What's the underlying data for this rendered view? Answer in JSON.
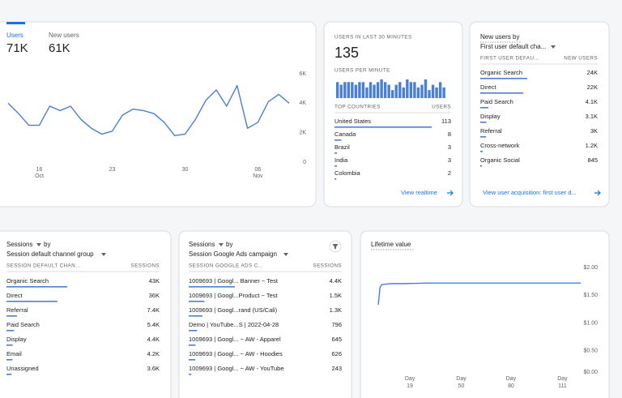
{
  "chart_data": [
    {
      "type": "line",
      "tabs": [
        {
          "label": "Users",
          "value": "71K"
        },
        {
          "label": "New users",
          "value": "61K"
        }
      ],
      "categories": [
        null,
        null,
        null,
        "16",
        null,
        null,
        null,
        null,
        null,
        null,
        "23",
        null,
        null,
        null,
        null,
        null,
        null,
        "30",
        null,
        null,
        null,
        null,
        null,
        null,
        "06",
        null,
        null,
        null
      ],
      "category_months": [
        null,
        null,
        null,
        "Oct",
        null,
        null,
        null,
        null,
        null,
        null,
        null,
        null,
        null,
        null,
        null,
        null,
        null,
        null,
        null,
        null,
        null,
        null,
        null,
        null,
        "Nov",
        null,
        null,
        null
      ],
      "values": [
        4000,
        3300,
        2500,
        2500,
        3800,
        3500,
        3800,
        2900,
        2300,
        1900,
        2100,
        3200,
        3600,
        3500,
        3300,
        2700,
        1800,
        1900,
        2900,
        4200,
        4900,
        3800,
        5200,
        2300,
        2700,
        4100,
        4600,
        4000
      ],
      "color": "#4a7fd8",
      "ylim": [
        0,
        6000
      ],
      "yticks": [
        0,
        {
          "value": 2000,
          "label": "2K"
        },
        {
          "value": 4000,
          "label": "4K"
        },
        {
          "value": 6000,
          "label": "6K"
        }
      ],
      "y_axis": "right"
    },
    {
      "type": "bar",
      "title": "USERS IN LAST 30 MINUTES",
      "headline": "135",
      "subtitle": "USERS PER MINUTE",
      "values": [
        6,
        5,
        6,
        6,
        6,
        5,
        6,
        6,
        4,
        6,
        5,
        6,
        7,
        6,
        5,
        3,
        5,
        6,
        4,
        7,
        6,
        6,
        4,
        5,
        7,
        3,
        5,
        4,
        6,
        4
      ],
      "color": "#4a7fd8"
    },
    {
      "type": "line",
      "title": "Lifetime value",
      "x": [
        0,
        1,
        2,
        4,
        8,
        15,
        30,
        60,
        90,
        122
      ],
      "values": [
        1.33,
        1.64,
        1.69,
        1.7,
        1.71,
        1.71,
        1.72,
        1.72,
        1.72,
        1.72
      ],
      "color": "#4a7fd8",
      "xlim": [
        -3,
        122
      ],
      "xticks": [
        {
          "value": 19,
          "label": "Day 19"
        },
        {
          "value": 50,
          "label": "Day 50"
        },
        {
          "value": 80,
          "label": "Day 80"
        },
        {
          "value": 111,
          "label": "Day 111"
        }
      ],
      "ylim": [
        0,
        2
      ],
      "yticks": [
        {
          "value": 0,
          "label": "$0.00"
        },
        {
          "value": 0.5,
          "label": "$0.50"
        },
        {
          "value": 1,
          "label": "$1.00"
        },
        {
          "value": 1.5,
          "label": "$1.50"
        },
        {
          "value": 2,
          "label": "$2.00"
        }
      ],
      "y_axis": "right"
    }
  ],
  "tables": [
    {
      "header": [
        "TOP COUNTRIES",
        "USERS"
      ],
      "rows": [
        "United States",
        "Canada",
        "Brazil",
        "India",
        "Colombia"
      ],
      "values": [
        113,
        8,
        3,
        3,
        2
      ],
      "link": "View realtime"
    },
    {
      "title": "New users by",
      "dimension": "First user default cha...",
      "header": [
        "FIRST USER DEFAU...",
        "NEW USERS"
      ],
      "rows": [
        "Organic Search",
        "Direct",
        "Paid Search",
        "Display",
        "Referral",
        "Cross-network",
        "Organic Social"
      ],
      "values": [
        24000,
        22000,
        4100,
        3100,
        3000,
        1200,
        845
      ],
      "value_labels": [
        "24K",
        "22K",
        "4.1K",
        "3.1K",
        "3K",
        "1.2K",
        "845"
      ],
      "link": "View user acquisition: first user d..."
    },
    {
      "metric": "Sessions",
      "by": "by",
      "dimension": "Session default channel group",
      "header": [
        "SESSION DEFAULT CHAN...",
        "SESSIONS"
      ],
      "rows": [
        "Organic Search",
        "Direct",
        "Referral",
        "Paid Search",
        "Display",
        "Email",
        "Unassigned"
      ],
      "values": [
        43000,
        36000,
        7400,
        5400,
        4400,
        4200,
        3600
      ],
      "value_labels": [
        "43K",
        "36K",
        "7.4K",
        "5.4K",
        "4.4K",
        "4.2K",
        "3.6K"
      ]
    },
    {
      "metric": "Sessions",
      "by": "by",
      "dimension": "Session Google Ads campaign",
      "header": [
        "SESSION GOOGLE ADS C...",
        "SESSIONS"
      ],
      "rows": [
        "1009693 | Googl... Banner ~ Test",
        "1009693 | Googl...Product ~ Test",
        "1009693 | Googl...rand (US/Cali)",
        "Demo | YouTube...S | 2022-04-28",
        "1009693 | Googl... ~ AW - Apparel",
        "1009693 | Googl... ~ AW - Hoodies",
        "1009693 | Googl... ~ AW - YouTube"
      ],
      "values": [
        4400,
        1500,
        1300,
        796,
        645,
        626,
        243
      ],
      "value_labels": [
        "4.4K",
        "1.5K",
        "1.3K",
        "796",
        "645",
        "626",
        "243"
      ]
    }
  ]
}
